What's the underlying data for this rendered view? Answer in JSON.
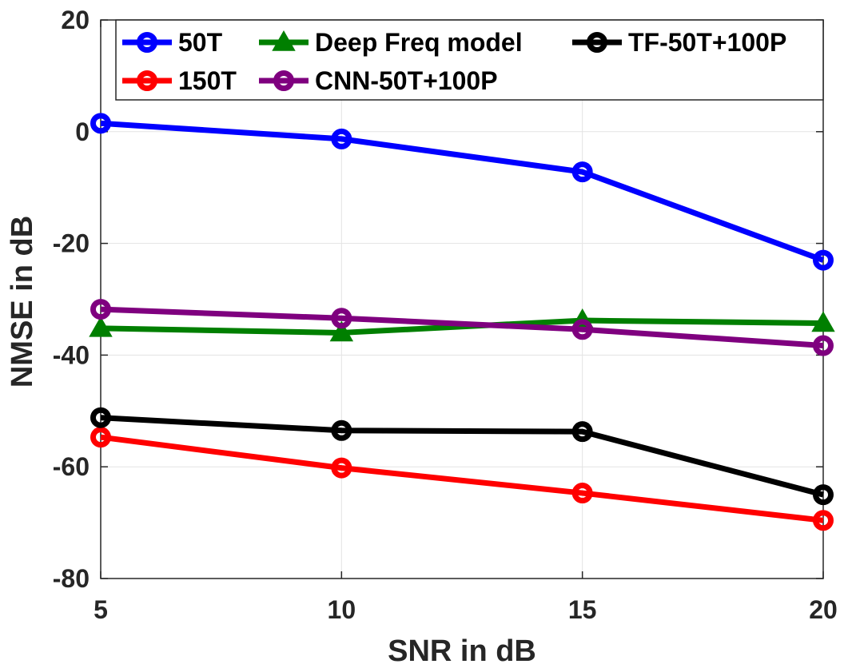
{
  "chart_data": {
    "type": "line",
    "title": "",
    "xlabel": "SNR in dB",
    "ylabel": "NMSE in dB",
    "x": [
      5,
      10,
      15,
      20
    ],
    "xlim": [
      5,
      20
    ],
    "ylim": [
      -80,
      20
    ],
    "xticks": [
      5,
      10,
      15,
      20
    ],
    "yticks": [
      20,
      0,
      -20,
      -40,
      -60,
      -80
    ],
    "grid": true,
    "legend_position": "top",
    "series": [
      {
        "name": "50T",
        "color": "#0000ff",
        "marker": "circle",
        "values": [
          1.5,
          -1.3,
          -7.2,
          -23
        ]
      },
      {
        "name": "150T",
        "color": "#ff0000",
        "marker": "circle",
        "values": [
          -54.7,
          -60.2,
          -64.7,
          -69.6
        ]
      },
      {
        "name": "Deep Freq model",
        "color": "#007f00",
        "marker": "triangle",
        "values": [
          -35.2,
          -36,
          -33.8,
          -34.3
        ]
      },
      {
        "name": "CNN-50T+100P",
        "color": "#7f007f",
        "marker": "circle",
        "values": [
          -31.8,
          -33.4,
          -35.4,
          -38.3
        ]
      },
      {
        "name": "TF-50T+100P",
        "color": "#000000",
        "marker": "circle",
        "values": [
          -51.2,
          -53.5,
          -53.7,
          -65
        ]
      }
    ]
  }
}
